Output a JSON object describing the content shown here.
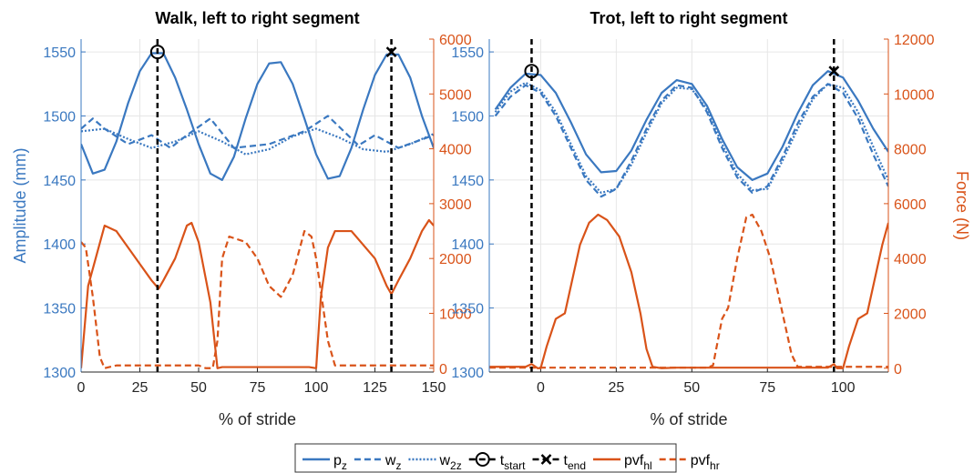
{
  "chart_data": [
    {
      "type": "line",
      "title": "Walk, left to right segment",
      "xlabel": "% of stride",
      "ylabel": "Amplitude (mm)",
      "xlim": [
        0,
        150
      ],
      "xticks": [
        0,
        25,
        50,
        75,
        100,
        125,
        150
      ],
      "ylim": [
        1300,
        1560
      ],
      "yticks": [
        1300,
        1350,
        1400,
        1450,
        1500,
        1550
      ],
      "y2lim": [
        -70,
        6000
      ],
      "y2ticks": [
        0,
        1000,
        2000,
        3000,
        4000,
        5000,
        6000
      ],
      "grid": true,
      "series": [
        {
          "color": "#3a78c0",
          "style": "solid",
          "axis": "y",
          "x": [
            0,
            5,
            10,
            15,
            20,
            25,
            30,
            35,
            40,
            45,
            50,
            55,
            60,
            65,
            70,
            75,
            80,
            85,
            90,
            95,
            100,
            105,
            110,
            115,
            120,
            125,
            130,
            135,
            140,
            145,
            150
          ],
          "values": [
            1478,
            1455,
            1458,
            1480,
            1510,
            1535,
            1549,
            1549,
            1530,
            1505,
            1478,
            1455,
            1450,
            1468,
            1498,
            1525,
            1541,
            1542,
            1525,
            1498,
            1470,
            1451,
            1453,
            1475,
            1505,
            1532,
            1548,
            1548,
            1530,
            1500,
            1475
          ]
        },
        {
          "color": "#3a78c0",
          "style": "dashed",
          "axis": "y",
          "x": [
            0,
            5,
            10,
            20,
            30,
            38,
            45,
            55,
            65,
            80,
            95,
            105,
            118,
            125,
            135,
            150
          ],
          "values": [
            1490,
            1498,
            1490,
            1478,
            1485,
            1475,
            1485,
            1498,
            1475,
            1478,
            1488,
            1500,
            1477,
            1485,
            1475,
            1485
          ]
        },
        {
          "color": "#3a78c0",
          "style": "dotted",
          "axis": "y",
          "x": [
            0,
            10,
            20,
            30,
            40,
            50,
            60,
            70,
            80,
            90,
            100,
            110,
            120,
            130,
            140,
            150
          ],
          "values": [
            1488,
            1490,
            1482,
            1475,
            1480,
            1488,
            1480,
            1470,
            1474,
            1484,
            1490,
            1483,
            1474,
            1472,
            1478,
            1486
          ]
        },
        {
          "color": "#d95319",
          "style": "solid",
          "axis": "y2",
          "x": [
            0,
            3,
            10,
            15,
            20,
            25,
            30,
            33,
            35,
            40,
            45,
            47,
            50,
            55,
            58,
            60,
            97,
            100,
            102,
            105,
            108,
            115,
            125,
            130,
            132,
            135,
            140,
            145,
            148,
            150
          ],
          "values": [
            0,
            1500,
            2600,
            2500,
            2200,
            1900,
            1600,
            1450,
            1600,
            2000,
            2600,
            2650,
            2300,
            1200,
            0,
            20,
            20,
            0,
            1300,
            2200,
            2500,
            2500,
            2000,
            1500,
            1350,
            1600,
            2000,
            2500,
            2700,
            2600
          ]
        },
        {
          "color": "#d95319",
          "style": "dashed",
          "axis": "y2",
          "x": [
            0,
            2,
            5,
            8,
            10,
            15,
            50,
            53,
            56,
            58,
            60,
            63,
            70,
            75,
            80,
            85,
            90,
            95,
            98,
            100,
            105,
            108,
            150
          ],
          "values": [
            2300,
            2200,
            1300,
            200,
            0,
            50,
            50,
            0,
            0,
            500,
            2000,
            2400,
            2300,
            2000,
            1500,
            1300,
            1700,
            2500,
            2400,
            2000,
            500,
            50,
            50
          ]
        }
      ],
      "events": [
        {
          "x": 32.5,
          "y": 1550,
          "marker": "circle"
        },
        {
          "x": 132,
          "y": 1550,
          "marker": "cross"
        }
      ]
    },
    {
      "type": "line",
      "title": "Trot, left to right segment",
      "xlabel": "% of stride",
      "y2label": "Force (N)",
      "xlim": [
        -17,
        115
      ],
      "xticks": [
        0,
        25,
        50,
        75,
        100
      ],
      "ylim": [
        1300,
        1560
      ],
      "yticks": [
        1300,
        1350,
        1400,
        1450,
        1500,
        1550
      ],
      "y2lim": [
        -140,
        12000
      ],
      "y2ticks": [
        0,
        2000,
        4000,
        6000,
        8000,
        10000,
        12000
      ],
      "grid": true,
      "series": [
        {
          "color": "#3a78c0",
          "style": "solid",
          "axis": "y",
          "x": [
            -15,
            -10,
            -5,
            0,
            5,
            10,
            15,
            20,
            25,
            30,
            35,
            40,
            45,
            50,
            55,
            60,
            65,
            70,
            75,
            80,
            85,
            90,
            95,
            100,
            105,
            110,
            115
          ],
          "values": [
            1505,
            1522,
            1533,
            1532,
            1518,
            1495,
            1470,
            1456,
            1457,
            1473,
            1497,
            1518,
            1528,
            1525,
            1508,
            1482,
            1460,
            1450,
            1455,
            1476,
            1502,
            1524,
            1535,
            1530,
            1512,
            1490,
            1472
          ]
        },
        {
          "color": "#3a78c0",
          "style": "dashed",
          "axis": "y",
          "x": [
            -15,
            -10,
            -5,
            0,
            5,
            10,
            15,
            20,
            25,
            30,
            35,
            40,
            45,
            50,
            55,
            60,
            65,
            70,
            75,
            80,
            85,
            90,
            95,
            100,
            105,
            110,
            115
          ],
          "values": [
            1500,
            1515,
            1524,
            1518,
            1500,
            1475,
            1450,
            1437,
            1443,
            1465,
            1490,
            1512,
            1524,
            1522,
            1503,
            1475,
            1452,
            1440,
            1445,
            1468,
            1494,
            1515,
            1525,
            1518,
            1498,
            1470,
            1445
          ]
        },
        {
          "color": "#3a78c0",
          "style": "dotted",
          "axis": "y",
          "x": [
            -15,
            -10,
            -5,
            0,
            5,
            10,
            15,
            20,
            25,
            30,
            35,
            40,
            45,
            50,
            55,
            60,
            65,
            70,
            75,
            80,
            85,
            90,
            95,
            100,
            105,
            110,
            115
          ],
          "values": [
            1503,
            1519,
            1526,
            1520,
            1503,
            1478,
            1453,
            1440,
            1443,
            1462,
            1487,
            1510,
            1522,
            1521,
            1505,
            1478,
            1455,
            1442,
            1443,
            1465,
            1490,
            1513,
            1525,
            1522,
            1503,
            1476,
            1450
          ]
        },
        {
          "color": "#d95319",
          "style": "solid",
          "axis": "y2",
          "x": [
            -17,
            -5,
            -3,
            -1,
            0,
            2,
            5,
            8,
            10,
            13,
            16,
            19,
            22,
            26,
            30,
            33,
            35,
            37,
            40,
            45,
            95,
            97,
            98,
            100,
            102,
            105,
            108,
            110,
            113,
            115
          ],
          "values": [
            50,
            50,
            150,
            0,
            0,
            800,
            1800,
            2000,
            3000,
            4500,
            5300,
            5600,
            5400,
            4800,
            3500,
            2000,
            700,
            50,
            0,
            20,
            20,
            150,
            0,
            0,
            800,
            1800,
            2000,
            3000,
            4500,
            5300
          ]
        },
        {
          "color": "#d95319",
          "style": "dashed",
          "axis": "y2",
          "x": [
            -17,
            55,
            57,
            60,
            62,
            65,
            68,
            70,
            73,
            76,
            80,
            83,
            85,
            115
          ],
          "values": [
            20,
            20,
            100,
            1800,
            2200,
            4000,
            5500,
            5600,
            5000,
            4000,
            2000,
            500,
            50,
            50
          ]
        }
      ],
      "events": [
        {
          "x": -3,
          "y": 1535,
          "marker": "circle"
        },
        {
          "x": 97,
          "y": 1535,
          "marker": "cross"
        }
      ]
    }
  ],
  "legend": [
    {
      "label": "p",
      "sub": "z",
      "color": "#3a78c0",
      "style": "solid"
    },
    {
      "label": "w",
      "sub": "z",
      "color": "#3a78c0",
      "style": "dashed"
    },
    {
      "label": "w",
      "sub": "2z",
      "color": "#3a78c0",
      "style": "dotted"
    },
    {
      "label": "t",
      "sub": "start",
      "color": "#000000",
      "style": "dashed",
      "marker": "circle"
    },
    {
      "label": "t",
      "sub": "end",
      "color": "#000000",
      "style": "dashed",
      "marker": "cross"
    },
    {
      "label": "pvf",
      "sub": "hl",
      "color": "#d95319",
      "style": "solid"
    },
    {
      "label": "pvf",
      "sub": "hr",
      "color": "#d95319",
      "style": "dashed"
    }
  ]
}
